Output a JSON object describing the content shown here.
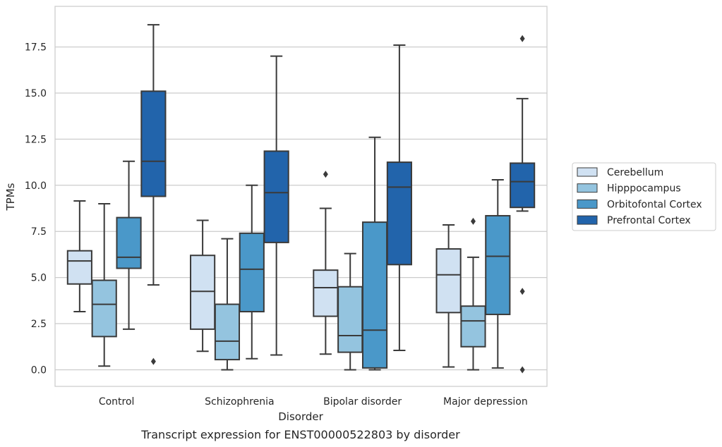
{
  "chart_data": {
    "type": "box",
    "categories": [
      "Control",
      "Schizophrenia",
      "Bipolar disorder",
      "Major depression"
    ],
    "xlabel": "Disorder",
    "ylabel": "TPMs",
    "caption": "Transcript expression for ENST00000522803 by disorder",
    "ylim": [
      -0.9,
      19.7
    ],
    "yticks": [
      "0.0",
      "2.5",
      "5.0",
      "7.5",
      "10.0",
      "12.5",
      "15.0",
      "17.5"
    ],
    "grid": "horizontal",
    "legend_position": "right",
    "series": [
      {
        "name": "Cerebellum",
        "color": "#d0e1f2",
        "boxes": [
          {
            "whislo": 3.15,
            "q1": 4.65,
            "med": 5.9,
            "q3": 6.45,
            "whishi": 9.15,
            "fliers": []
          },
          {
            "whislo": 1.0,
            "q1": 2.2,
            "med": 4.25,
            "q3": 6.2,
            "whishi": 8.1,
            "fliers": []
          },
          {
            "whislo": 0.85,
            "q1": 2.9,
            "med": 4.45,
            "q3": 5.4,
            "whishi": 8.75,
            "fliers": [
              10.6
            ]
          },
          {
            "whislo": 0.15,
            "q1": 3.1,
            "med": 5.15,
            "q3": 6.55,
            "whishi": 7.85,
            "fliers": []
          }
        ]
      },
      {
        "name": "Hipppocampus",
        "color": "#94c4df",
        "boxes": [
          {
            "whislo": 0.2,
            "q1": 1.8,
            "med": 3.55,
            "q3": 4.85,
            "whishi": 9.0,
            "fliers": []
          },
          {
            "whislo": 0.0,
            "q1": 0.55,
            "med": 1.55,
            "q3": 3.55,
            "whishi": 7.1,
            "fliers": []
          },
          {
            "whislo": 0.0,
            "q1": 0.95,
            "med": 1.85,
            "q3": 4.5,
            "whishi": 6.3,
            "fliers": []
          },
          {
            "whislo": 0.0,
            "q1": 1.25,
            "med": 2.65,
            "q3": 3.45,
            "whishi": 6.1,
            "fliers": [
              8.05
            ]
          }
        ]
      },
      {
        "name": "Orbitofontal Cortex",
        "color": "#4a98c9",
        "boxes": [
          {
            "whislo": 2.2,
            "q1": 5.5,
            "med": 6.1,
            "q3": 8.25,
            "whishi": 11.3,
            "fliers": []
          },
          {
            "whislo": 0.6,
            "q1": 3.15,
            "med": 5.45,
            "q3": 7.4,
            "whishi": 10.0,
            "fliers": []
          },
          {
            "whislo": 0.0,
            "q1": 0.1,
            "med": 2.15,
            "q3": 8.0,
            "whishi": 12.6,
            "fliers": []
          },
          {
            "whislo": 0.1,
            "q1": 3.0,
            "med": 6.15,
            "q3": 8.35,
            "whishi": 10.3,
            "fliers": []
          }
        ]
      },
      {
        "name": "Prefrontal Cortex",
        "color": "#2264ab",
        "boxes": [
          {
            "whislo": 4.6,
            "q1": 9.4,
            "med": 11.3,
            "q3": 15.1,
            "whishi": 18.7,
            "fliers": [
              0.45
            ]
          },
          {
            "whislo": 0.8,
            "q1": 6.9,
            "med": 9.6,
            "q3": 11.85,
            "whishi": 17.0,
            "fliers": []
          },
          {
            "whislo": 1.05,
            "q1": 5.7,
            "med": 9.9,
            "q3": 11.25,
            "whishi": 17.6,
            "fliers": []
          },
          {
            "whislo": 8.6,
            "q1": 8.8,
            "med": 10.2,
            "q3": 11.2,
            "whishi": 14.7,
            "fliers": [
              17.95,
              4.25,
              0.0
            ]
          }
        ]
      }
    ]
  },
  "colors": {
    "grid": "#cccccc",
    "frame": "#cccccc",
    "box_edge": "#3a3a3a",
    "text": "#262626"
  }
}
